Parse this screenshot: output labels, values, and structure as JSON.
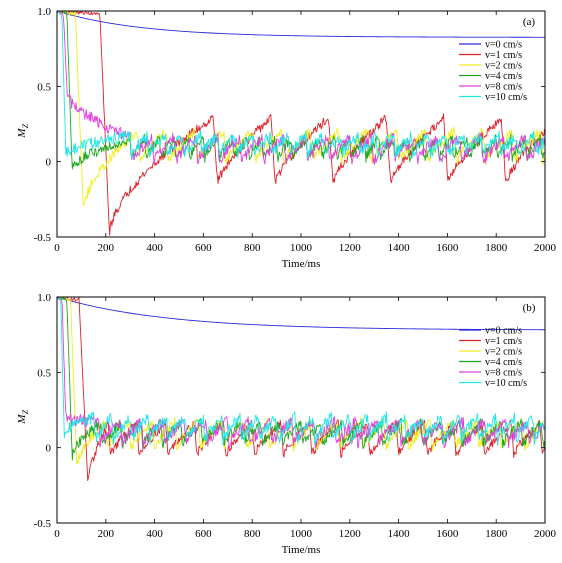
{
  "chart_data": [
    {
      "type": "line",
      "panel_label": "(a)",
      "xlabel": "Time/ms",
      "ylabel": "M",
      "ylabel_sub": "Z",
      "xlim": [
        0,
        2000
      ],
      "ylim": [
        -0.5,
        1.0
      ],
      "xticks": [
        0,
        200,
        400,
        600,
        800,
        1000,
        1200,
        1400,
        1600,
        1800,
        2000
      ],
      "yticks": [
        -0.5,
        0,
        0.5,
        1.0
      ],
      "ytick_labels": [
        "-0.5",
        "0",
        "0.5",
        "1.0"
      ],
      "legend_position": "top-right",
      "series": [
        {
          "name": "v=0 cm/s",
          "color": "#2a2adc",
          "model": "decay",
          "start": 1.0,
          "end": 0.825,
          "tau": 350
        },
        {
          "name": "v=1 cm/s",
          "color": "#e0202a",
          "model": "saw",
          "t0": 175,
          "drop_to": -0.48,
          "period": 236,
          "trough": -0.14,
          "peak": 0.29,
          "first_peak_t": 640,
          "noise": 0.03
        },
        {
          "name": "v=2 cm/s",
          "color": "#f0f020",
          "model": "saw",
          "t0": 75,
          "drop_to": -0.32,
          "period": 118,
          "trough": 0.0,
          "peak": 0.2,
          "first_peak_t": 330,
          "noise": 0.035
        },
        {
          "name": "v=4 cm/s",
          "color": "#1fa81f",
          "model": "saw",
          "t0": 40,
          "drop_to": -0.05,
          "period": 60,
          "trough": 0.02,
          "peak": 0.15,
          "first_peak_t": 300,
          "noise": 0.035
        },
        {
          "name": "v=8 cm/s",
          "color": "#e040e0",
          "model": "saw",
          "t0": 25,
          "drop_to": 0.45,
          "period": 90,
          "trough": 0.0,
          "peak": 0.16,
          "first_peak_t": 300,
          "noise": 0.04
        },
        {
          "name": "v=10 cm/s",
          "color": "#20e8e8",
          "model": "saw",
          "t0": 20,
          "drop_to": 0.05,
          "period": 72,
          "trough": 0.05,
          "peak": 0.17,
          "first_peak_t": 300,
          "noise": 0.04
        }
      ]
    },
    {
      "type": "line",
      "panel_label": "(b)",
      "xlabel": "Time/ms",
      "ylabel": "M",
      "ylabel_sub": "Z",
      "xlim": [
        0,
        2000
      ],
      "ylim": [
        -0.5,
        1.0
      ],
      "xticks": [
        0,
        200,
        400,
        600,
        800,
        1000,
        1200,
        1400,
        1600,
        1800,
        2000
      ],
      "yticks": [
        -0.5,
        0,
        0.5,
        1.0
      ],
      "ytick_labels": [
        "-0.5",
        "0",
        "0.5",
        "1.0"
      ],
      "legend_position": "top-right",
      "series": [
        {
          "name": "v=0 cm/s",
          "color": "#2a2adc",
          "model": "decay",
          "start": 1.0,
          "end": 0.78,
          "tau": 450
        },
        {
          "name": "v=1 cm/s",
          "color": "#e0202a",
          "model": "saw",
          "t0": 90,
          "drop_to": -0.26,
          "period": 118,
          "trough": -0.05,
          "peak": 0.16,
          "first_peak_t": 210,
          "noise": 0.03
        },
        {
          "name": "v=2 cm/s",
          "color": "#f0f020",
          "model": "saw",
          "t0": 55,
          "drop_to": -0.12,
          "period": 95,
          "trough": 0.0,
          "peak": 0.17,
          "first_peak_t": 200,
          "noise": 0.035
        },
        {
          "name": "v=4 cm/s",
          "color": "#1fa81f",
          "model": "saw",
          "t0": 40,
          "drop_to": -0.06,
          "period": 82,
          "trough": 0.02,
          "peak": 0.16,
          "first_peak_t": 180,
          "noise": 0.035
        },
        {
          "name": "v=8 cm/s",
          "color": "#e040e0",
          "model": "saw",
          "t0": 20,
          "drop_to": 0.2,
          "period": 88,
          "trough": 0.03,
          "peak": 0.17,
          "first_peak_t": 170,
          "noise": 0.04
        },
        {
          "name": "v=10 cm/s",
          "color": "#20e8e8",
          "model": "saw",
          "t0": 15,
          "drop_to": 0.1,
          "period": 75,
          "trough": 0.05,
          "peak": 0.2,
          "first_peak_t": 150,
          "noise": 0.04
        }
      ]
    }
  ]
}
